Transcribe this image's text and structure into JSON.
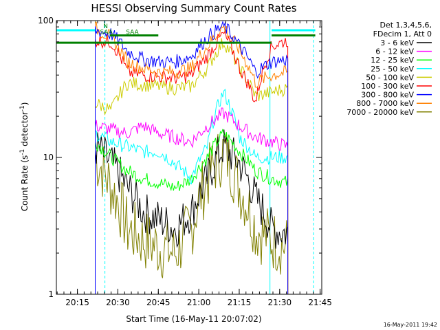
{
  "chart_data": {
    "type": "line",
    "title": "HESSI Observing Summary Count Rates",
    "xlabel": "Start Time (16-May-11 20:07:02)",
    "ylabel_main": "Count Rate (s",
    "ylabel_sup": "-1",
    "ylabel_rest": " detector",
    "ylabel_sup2": "-1",
    "ylabel_end": ")",
    "yscale": "log",
    "ylim": [
      1,
      100
    ],
    "xlim_minutes": [
      20.12,
      21.76
    ],
    "y_ticks": [
      {
        "value": 1,
        "label": "1"
      },
      {
        "value": 10,
        "label": "10"
      },
      {
        "value": 100,
        "label": "100"
      }
    ],
    "x_ticks": [
      {
        "value": 20.25,
        "label": "20:15"
      },
      {
        "value": 20.5,
        "label": "20:30"
      },
      {
        "value": 20.75,
        "label": "20:45"
      },
      {
        "value": 21.0,
        "label": "21:00"
      },
      {
        "value": 21.25,
        "label": "21:15"
      },
      {
        "value": 21.5,
        "label": "21:30"
      },
      {
        "value": 21.75,
        "label": "21:45"
      }
    ],
    "legend": {
      "placement": "right",
      "header1": "Det 1,3,4,5,6,",
      "header2": "FDecim 1, Att 0",
      "entries": [
        {
          "name": "3 - 6 keV",
          "color": "#000000"
        },
        {
          "name": "6 - 12 keV",
          "color": "#ff00ff"
        },
        {
          "name": "12 - 25 keV",
          "color": "#00ff00"
        },
        {
          "name": "25 - 50 keV",
          "color": "#00ffff"
        },
        {
          "name": "50 - 100 keV",
          "color": "#cccc00"
        },
        {
          "name": "100 - 300 keV",
          "color": "#ff0000"
        },
        {
          "name": "300 - 800 keV",
          "color": "#0000ff"
        },
        {
          "name": "800 - 7000 keV",
          "color": "#ff8000"
        },
        {
          "name": "7000 - 20000 keV",
          "color": "#808000"
        }
      ]
    },
    "data_start": 20.36,
    "data_end": 21.55,
    "gaps": [
      [
        20.45,
        20.45
      ],
      [
        20.76,
        20.76
      ]
    ],
    "series": [
      {
        "name": "3 - 6 keV",
        "color": "#000000",
        "base": [
          12,
          9,
          6,
          4,
          3.5,
          3,
          4,
          7,
          12,
          9,
          5,
          3,
          2.8
        ]
      },
      {
        "name": "6 - 12 keV",
        "color": "#ff00ff",
        "base": [
          17,
          16,
          15,
          17,
          15,
          14,
          13,
          17,
          21,
          17,
          14,
          13,
          12
        ]
      },
      {
        "name": "12 - 25 keV",
        "color": "#00ff00",
        "base": [
          13,
          10,
          8,
          7,
          6.5,
          6,
          7,
          10,
          15,
          11,
          8,
          7,
          6.5
        ]
      },
      {
        "name": "25 - 50 keV",
        "color": "#00ffff",
        "base": [
          15,
          13,
          12,
          11,
          11,
          9,
          7,
          12,
          30,
          14,
          10,
          10,
          10
        ]
      },
      {
        "name": "50 - 100 keV",
        "color": "#cccc00",
        "base": [
          25,
          22,
          35,
          34,
          33,
          32,
          33,
          45,
          70,
          45,
          28,
          30,
          32
        ]
      },
      {
        "name": "100 - 300 keV",
        "color": "#ff0000",
        "base": [
          72,
          70,
          42,
          40,
          39,
          38,
          40,
          55,
          80,
          45,
          25,
          65,
          72
        ]
      },
      {
        "name": "300 - 800 keV",
        "color": "#0000ff",
        "base": [
          85,
          80,
          60,
          52,
          50,
          50,
          55,
          75,
          92,
          65,
          42,
          50,
          52
        ]
      },
      {
        "name": "800 - 7000 keV",
        "color": "#ff8000",
        "base": [
          88,
          75,
          50,
          45,
          42,
          42,
          45,
          65,
          90,
          60,
          35,
          40,
          42
        ]
      },
      {
        "name": "7000 - 20000 keV",
        "color": "#808000",
        "base": [
          10,
          6,
          3,
          2.5,
          2.2,
          2,
          3,
          7,
          11,
          6,
          3,
          2.5,
          2.2
        ]
      }
    ],
    "flag_lines": [
      {
        "color": "#00ffff",
        "y": 85,
        "segments": [
          [
            20.12,
            20.36
          ],
          [
            21.45,
            21.72
          ]
        ]
      },
      {
        "color": "#008000",
        "y": 69,
        "segments": [
          [
            20.12,
            21.45
          ]
        ]
      },
      {
        "color": "#008000",
        "y": 78,
        "segments": [
          [
            20.45,
            20.75
          ],
          [
            21.45,
            21.72
          ]
        ]
      }
    ],
    "annotations": [
      {
        "text": "N",
        "x": 20.41,
        "y": 88
      },
      {
        "text": "SAA",
        "x": 20.39,
        "y": 80
      },
      {
        "text": "SAA",
        "x": 20.55,
        "y": 80
      }
    ],
    "vlines": [
      {
        "x": 20.36,
        "color": "#808000",
        "dashed": false
      },
      {
        "x": 20.42,
        "color": "#00ffff",
        "dashed": true
      },
      {
        "x": 21.44,
        "color": "#00ffff",
        "dashed": false
      },
      {
        "x": 21.71,
        "color": "#00ffff",
        "dashed": true
      }
    ],
    "timestamp": "16-May-2011 19:42"
  }
}
